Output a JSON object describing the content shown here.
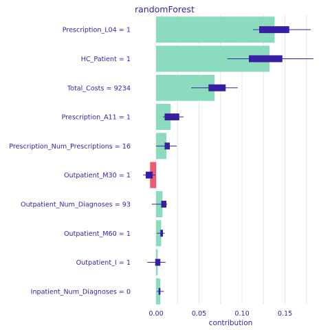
{
  "chart_data": {
    "type": "bar",
    "title": "randomForest",
    "xlabel": "contribution",
    "ylabel": "",
    "xlim": [
      -0.02,
      0.19
    ],
    "xticks": [
      "0.00",
      "0.05",
      "0.10",
      "0.15"
    ],
    "xtick_values": [
      0,
      0.05,
      0.1,
      0.15
    ],
    "grid": true,
    "legend": "none",
    "colors": {
      "positive": "#8bdcbe",
      "negative": "#f05a71",
      "box": "#371ea3",
      "text": "#371ea3",
      "grid": "#e6e6e6"
    },
    "categories": [
      "Prescription_L04 = 1",
      "HC_Patient = 1",
      "Total_Costs = 9234",
      "Prescription_A11 = 1",
      "Prescription_Num_Prescriptions = 16",
      "Outpatient_M30 = 1",
      "Outpatient_Num_Diagnoses = 93",
      "Outpatient_M60 = 1",
      "Outpatient_I = 1",
      "Inpatient_Num_Diagnoses = 0"
    ],
    "values": [
      0.138,
      0.132,
      0.068,
      0.017,
      0.012,
      -0.007,
      0.0075,
      0.006,
      0.002,
      0.005
    ],
    "boxplots": [
      {
        "min": 0.113,
        "q1": 0.12,
        "q3": 0.155,
        "max": 0.18
      },
      {
        "min": 0.083,
        "q1": 0.108,
        "q3": 0.147,
        "max": 0.183
      },
      {
        "min": 0.041,
        "q1": 0.061,
        "q3": 0.081,
        "max": 0.095
      },
      {
        "min": 0.008,
        "q1": 0.01,
        "q3": 0.027,
        "max": 0.032
      },
      {
        "min": 0.0,
        "q1": 0.01,
        "q3": 0.016,
        "max": 0.024
      },
      {
        "min": -0.015,
        "q1": -0.012,
        "q3": -0.004,
        "max": -0.001
      },
      {
        "min": -0.005,
        "q1": 0.006,
        "q3": 0.012,
        "max": 0.013
      },
      {
        "min": 0.001,
        "q1": 0.005,
        "q3": 0.008,
        "max": 0.01
      },
      {
        "min": -0.01,
        "q1": -0.001,
        "q3": 0.005,
        "max": 0.011
      },
      {
        "min": 0.001,
        "q1": 0.003,
        "q3": 0.005,
        "max": 0.009
      }
    ]
  }
}
